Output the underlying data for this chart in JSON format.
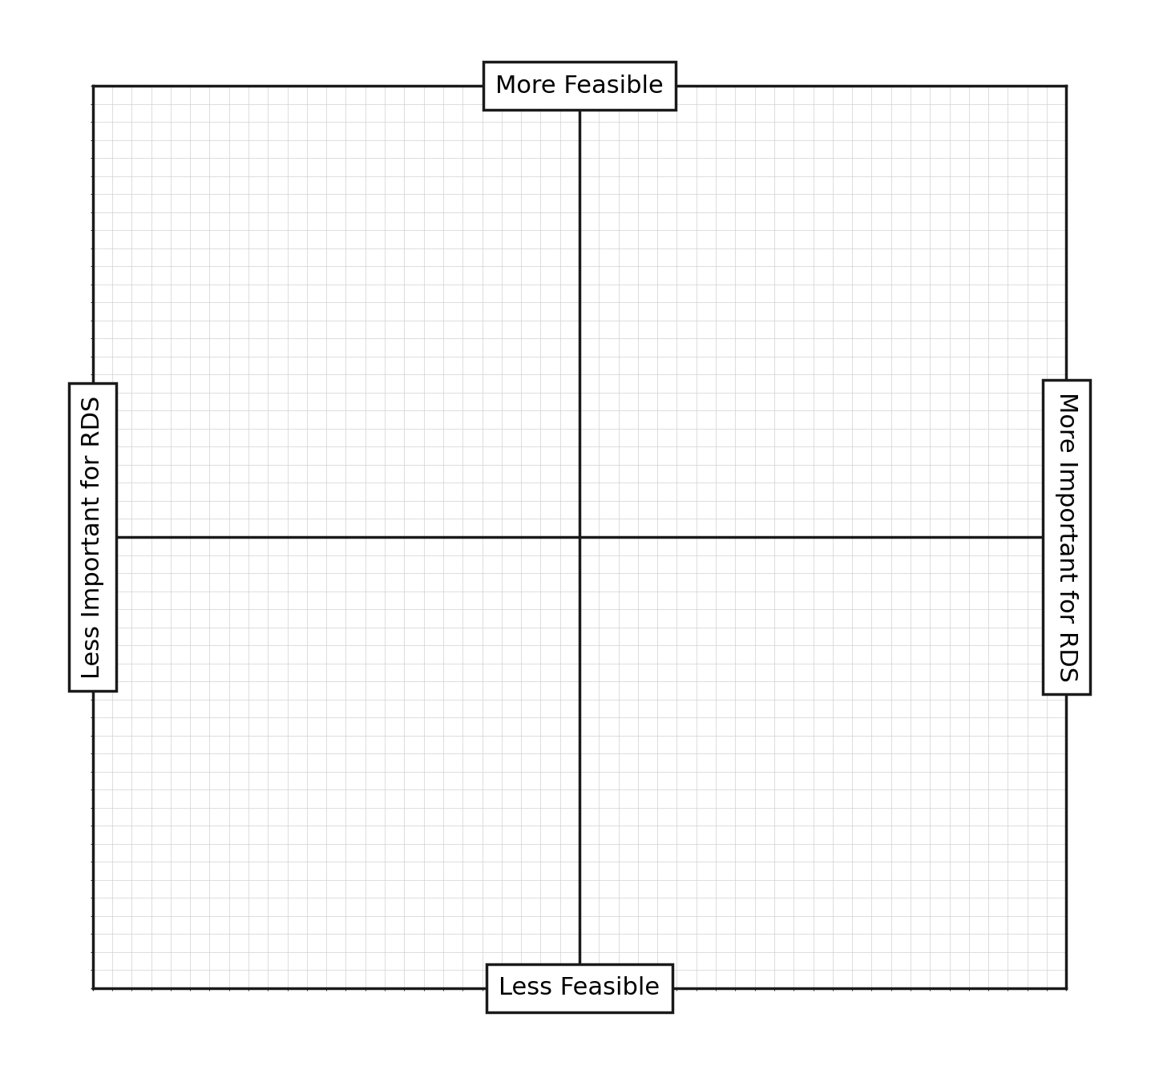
{
  "title_top": "More Feasible",
  "title_bottom": "Less Feasible",
  "title_left": "Less Important for RDS",
  "title_right": "More Important for RDS",
  "grid_color": "#d0d0d0",
  "axis_line_color": "#1a1a1a",
  "border_color": "#1a1a1a",
  "label_box_color": "#ffffff",
  "label_fontsize": 22,
  "background_color": "#ffffff",
  "figsize": [
    14.46,
    13.4
  ],
  "dpi": 100
}
